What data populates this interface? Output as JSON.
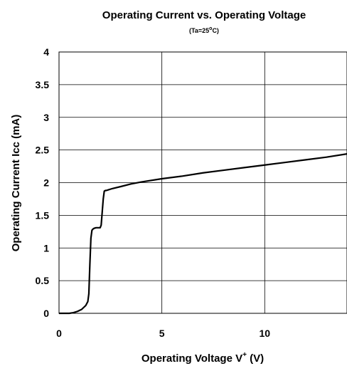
{
  "chart_data": {
    "type": "line",
    "title": "Operating Current vs. Operating Voltage",
    "subtitle_prefix": "(Ta=25",
    "subtitle_degree": "o",
    "subtitle_suffix": "C)",
    "xlabel_prefix": "Operating Voltage V",
    "xlabel_sup": "+",
    "xlabel_suffix": " (V)",
    "ylabel": "Operating Current Icc (mA)",
    "xlim": [
      0,
      14
    ],
    "ylim": [
      0,
      4
    ],
    "x_ticks": [
      {
        "value": 0,
        "label": "0"
      },
      {
        "value": 5,
        "label": "5"
      },
      {
        "value": 10,
        "label": "10"
      }
    ],
    "y_ticks": [
      {
        "value": 0,
        "label": "0"
      },
      {
        "value": 0.5,
        "label": "0.5"
      },
      {
        "value": 1,
        "label": "1"
      },
      {
        "value": 1.5,
        "label": "1.5"
      },
      {
        "value": 2,
        "label": "2"
      },
      {
        "value": 2.5,
        "label": "2.5"
      },
      {
        "value": 3,
        "label": "3"
      },
      {
        "value": 3.5,
        "label": "3.5"
      },
      {
        "value": 4,
        "label": "4"
      }
    ],
    "grid_x": [
      5,
      10
    ],
    "grid_y": [
      0.5,
      1,
      1.5,
      2,
      2.5,
      3,
      3.5
    ],
    "series": [
      {
        "x": [
          0,
          0.5,
          0.7,
          0.9,
          1.1,
          1.3,
          1.4,
          1.45,
          1.5,
          1.55,
          1.6,
          1.65,
          1.7,
          1.8,
          1.9,
          2.0,
          2.05,
          2.1,
          2.15,
          2.2,
          2.25,
          2.3,
          2.4,
          2.6,
          3.0,
          3.5,
          4,
          5,
          6,
          7,
          8,
          9,
          10,
          11,
          12,
          13,
          14
        ],
        "y": [
          0,
          0,
          0.01,
          0.03,
          0.06,
          0.12,
          0.18,
          0.3,
          0.75,
          1.15,
          1.27,
          1.29,
          1.3,
          1.31,
          1.31,
          1.31,
          1.35,
          1.55,
          1.75,
          1.87,
          1.88,
          1.88,
          1.89,
          1.91,
          1.94,
          1.98,
          2.01,
          2.06,
          2.1,
          2.15,
          2.19,
          2.23,
          2.27,
          2.31,
          2.35,
          2.39,
          2.44
        ]
      }
    ]
  }
}
